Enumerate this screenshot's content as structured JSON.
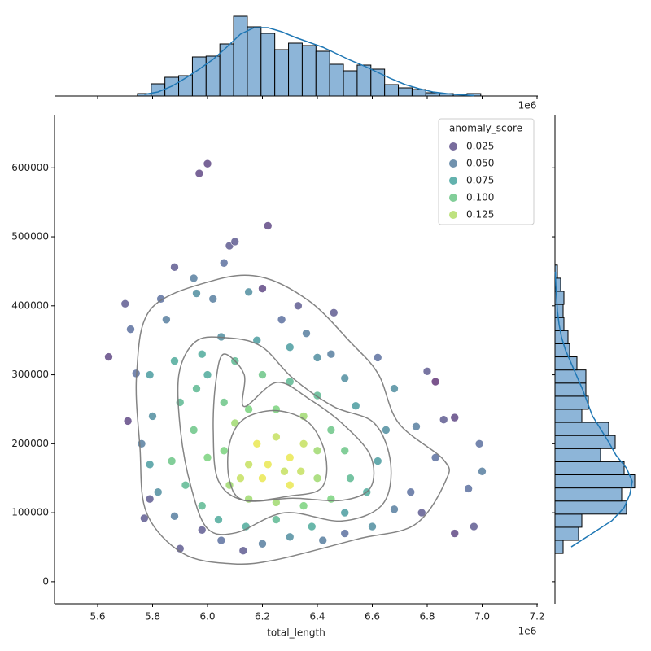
{
  "chart_data": {
    "type": "scatter",
    "x_label": "total_length",
    "x_offset_label": "1e6",
    "xlim": [
      5443000,
      7203000
    ],
    "ylim": [
      -32000,
      677000
    ],
    "xticks": [
      {
        "value": 5600000,
        "label": "5.6"
      },
      {
        "value": 5800000,
        "label": "5.8"
      },
      {
        "value": 6000000,
        "label": "6.0"
      },
      {
        "value": 6200000,
        "label": "6.2"
      },
      {
        "value": 6400000,
        "label": "6.4"
      },
      {
        "value": 6600000,
        "label": "6.6"
      },
      {
        "value": 6800000,
        "label": "6.8"
      },
      {
        "value": 7000000,
        "label": "7.0"
      },
      {
        "value": 7200000,
        "label": "7.2"
      }
    ],
    "yticks": [
      0,
      100000,
      200000,
      300000,
      400000,
      500000,
      600000
    ],
    "legend": {
      "title": "anomaly_score",
      "position": "upper right",
      "entries": [
        0.025,
        {
          "value": 0.05,
          "label": "0.050"
        },
        0.075,
        {
          "value": 0.1,
          "label": "0.100"
        },
        0.125
      ]
    },
    "hue_norm": [
      0.005,
      0.145
    ],
    "palette": [
      "#440154",
      "#3b528b",
      "#21918c",
      "#5ec962",
      "#fde725"
    ],
    "point_opacity": 0.7,
    "contour_color": "#777777",
    "x": [
      5970000,
      6000000,
      6220000,
      6060000,
      6080000,
      6100000,
      5880000,
      5640000,
      5710000,
      5700000,
      6830000,
      6990000,
      6900000,
      6970000,
      5900000,
      5720000,
      5740000,
      5760000,
      5790000,
      5770000,
      5830000,
      5850000,
      5950000,
      5960000,
      6020000,
      6150000,
      6200000,
      6270000,
      6330000,
      6360000,
      6450000,
      6460000,
      6620000,
      6680000,
      6760000,
      6800000,
      6860000,
      6900000,
      6830000,
      6950000,
      7000000,
      6740000,
      6780000,
      6680000,
      6600000,
      6500000,
      6420000,
      6300000,
      6200000,
      6130000,
      6050000,
      5980000,
      5880000,
      5820000,
      5790000,
      5800000,
      5790000,
      5880000,
      5900000,
      5870000,
      5920000,
      5980000,
      6040000,
      6140000,
      6250000,
      6380000,
      6500000,
      6580000,
      6620000,
      6650000,
      6540000,
      6500000,
      6400000,
      6300000,
      6180000,
      6050000,
      5980000,
      5960000,
      5950000,
      6000000,
      6000000,
      6060000,
      6100000,
      6200000,
      6300000,
      6400000,
      6450000,
      6500000,
      6520000,
      6450000,
      6350000,
      6250000,
      6150000,
      6080000,
      6060000,
      6100000,
      6150000,
      6250000,
      6350000,
      6400000,
      6400000,
      6300000,
      6200000,
      6150000,
      6180000,
      6250000,
      6300000,
      6350000,
      6220000,
      6280000,
      6120000,
      6340000
    ],
    "y": [
      592000,
      606000,
      516000,
      462000,
      487000,
      493000,
      456000,
      326000,
      233000,
      403000,
      290000,
      200000,
      70000,
      80000,
      48000,
      366000,
      302000,
      200000,
      120000,
      92000,
      410000,
      380000,
      440000,
      418000,
      410000,
      420000,
      425000,
      380000,
      400000,
      360000,
      330000,
      390000,
      325000,
      280000,
      225000,
      305000,
      235000,
      238000,
      180000,
      135000,
      160000,
      130000,
      100000,
      105000,
      80000,
      70000,
      60000,
      65000,
      55000,
      45000,
      60000,
      75000,
      95000,
      130000,
      170000,
      240000,
      300000,
      320000,
      260000,
      175000,
      140000,
      110000,
      90000,
      80000,
      90000,
      80000,
      100000,
      130000,
      175000,
      220000,
      255000,
      295000,
      325000,
      340000,
      350000,
      355000,
      330000,
      280000,
      220000,
      180000,
      300000,
      260000,
      320000,
      300000,
      290000,
      270000,
      220000,
      190000,
      150000,
      120000,
      110000,
      115000,
      120000,
      140000,
      190000,
      230000,
      250000,
      250000,
      240000,
      190000,
      150000,
      140000,
      150000,
      170000,
      200000,
      210000,
      180000,
      200000,
      170000,
      160000,
      150000,
      160000
    ],
    "hue": [
      0.02,
      0.02,
      0.02,
      0.04,
      0.03,
      0.03,
      0.03,
      0.02,
      0.02,
      0.03,
      0.01,
      0.04,
      0.02,
      0.03,
      0.03,
      0.04,
      0.04,
      0.05,
      0.03,
      0.03,
      0.04,
      0.05,
      0.05,
      0.06,
      0.05,
      0.06,
      0.02,
      0.04,
      0.03,
      0.05,
      0.05,
      0.03,
      0.04,
      0.06,
      0.05,
      0.03,
      0.03,
      0.02,
      0.04,
      0.04,
      0.05,
      0.04,
      0.03,
      0.05,
      0.06,
      0.04,
      0.05,
      0.06,
      0.05,
      0.03,
      0.04,
      0.03,
      0.05,
      0.06,
      0.07,
      0.06,
      0.07,
      0.08,
      0.09,
      0.1,
      0.09,
      0.09,
      0.08,
      0.08,
      0.09,
      0.08,
      0.07,
      0.08,
      0.07,
      0.06,
      0.07,
      0.06,
      0.06,
      0.07,
      0.07,
      0.06,
      0.08,
      0.09,
      0.1,
      0.11,
      0.08,
      0.1,
      0.09,
      0.1,
      0.09,
      0.09,
      0.1,
      0.1,
      0.09,
      0.11,
      0.11,
      0.12,
      0.12,
      0.12,
      0.11,
      0.12,
      0.11,
      0.11,
      0.12,
      0.12,
      0.12,
      0.14,
      0.14,
      0.13,
      0.14,
      0.13,
      0.14,
      0.13,
      0.14,
      0.13,
      0.13,
      0.13
    ],
    "contours": [
      [
        [
          5793000,
          395000
        ],
        [
          6015000,
          436000
        ],
        [
          6193000,
          442000
        ],
        [
          6370000,
          407000
        ],
        [
          6519000,
          348000
        ],
        [
          6622000,
          301000
        ],
        [
          6696000,
          230000
        ],
        [
          6859000,
          177000
        ],
        [
          6868000,
          147000
        ],
        [
          6756000,
          83000
        ],
        [
          6548000,
          62000
        ],
        [
          6252000,
          32000
        ],
        [
          6089000,
          26000
        ],
        [
          5911000,
          41000
        ],
        [
          5778000,
          100000
        ],
        [
          5754000,
          195000
        ],
        [
          5742000,
          301000
        ]
      ],
      [
        [
          5956000,
          348000
        ],
        [
          6059000,
          354000
        ],
        [
          6193000,
          342000
        ],
        [
          6311000,
          295000
        ],
        [
          6459000,
          254000
        ],
        [
          6607000,
          230000
        ],
        [
          6667000,
          171000
        ],
        [
          6637000,
          112000
        ],
        [
          6489000,
          88000
        ],
        [
          6281000,
          100000
        ],
        [
          6104000,
          71000
        ],
        [
          6000000,
          77000
        ],
        [
          5941000,
          136000
        ],
        [
          5902000,
          218000
        ],
        [
          5896000,
          301000
        ]
      ],
      [
        [
          6059000,
          330000
        ],
        [
          6133000,
          301000
        ],
        [
          6133000,
          254000
        ],
        [
          6252000,
          289000
        ],
        [
          6370000,
          265000
        ],
        [
          6489000,
          230000
        ],
        [
          6593000,
          183000
        ],
        [
          6593000,
          136000
        ],
        [
          6489000,
          118000
        ],
        [
          6311000,
          121000
        ],
        [
          6133000,
          118000
        ],
        [
          6039000,
          147000
        ],
        [
          6021000,
          218000
        ],
        [
          6030000,
          289000
        ]
      ],
      [
        [
          6133000,
          236000
        ],
        [
          6252000,
          248000
        ],
        [
          6370000,
          230000
        ],
        [
          6430000,
          183000
        ],
        [
          6415000,
          136000
        ],
        [
          6296000,
          124000
        ],
        [
          6133000,
          118000
        ],
        [
          6080000,
          147000
        ],
        [
          6080000,
          200000
        ]
      ]
    ],
    "hist_color": "#8db5d8",
    "kde_color": "#1f77b4",
    "top_hist": {
      "bins": [
        5745000,
        5795000,
        5845000,
        5895000,
        5945000,
        5995000,
        6045000,
        6095000,
        6145000,
        6195000,
        6245000,
        6295000,
        6345000,
        6395000,
        6445000,
        6495000,
        6545000,
        6595000,
        6645000,
        6695000,
        6745000,
        6795000,
        6845000,
        6895000,
        6945000,
        6995000
      ],
      "counts": [
        3,
        15,
        23,
        25,
        48,
        49,
        64,
        98,
        85,
        77,
        57,
        65,
        62,
        55,
        39,
        31,
        38,
        33,
        14,
        10,
        8,
        4,
        3,
        2,
        3
      ],
      "kde": [
        2,
        5,
        12,
        22,
        33,
        45,
        60,
        76,
        84,
        84,
        79,
        72,
        66,
        60,
        52,
        44,
        37,
        29,
        21,
        14,
        9,
        5,
        3,
        1.5,
        0.5
      ],
      "ylim": [
        0,
        100
      ]
    },
    "right_hist": {
      "bins": [
        41000,
        60000,
        79000,
        98000,
        117000,
        136000,
        155000,
        174000,
        193000,
        212000,
        231000,
        250000,
        269000,
        288000,
        307000,
        326000,
        345000,
        364000,
        383000,
        402000,
        421000,
        440000,
        459000
      ],
      "counts": [
        10,
        29,
        33,
        88,
        82,
        98,
        85,
        56,
        74,
        66,
        33,
        41,
        38,
        38,
        27,
        18,
        16,
        11,
        10,
        11,
        7,
        3
      ],
      "kde": [
        20,
        45,
        70,
        85,
        92,
        95,
        88,
        75,
        66,
        56,
        46,
        40,
        34,
        27,
        20,
        13,
        8,
        5,
        3,
        2,
        1,
        0.5
      ],
      "xlim": [
        0,
        100
      ]
    }
  }
}
